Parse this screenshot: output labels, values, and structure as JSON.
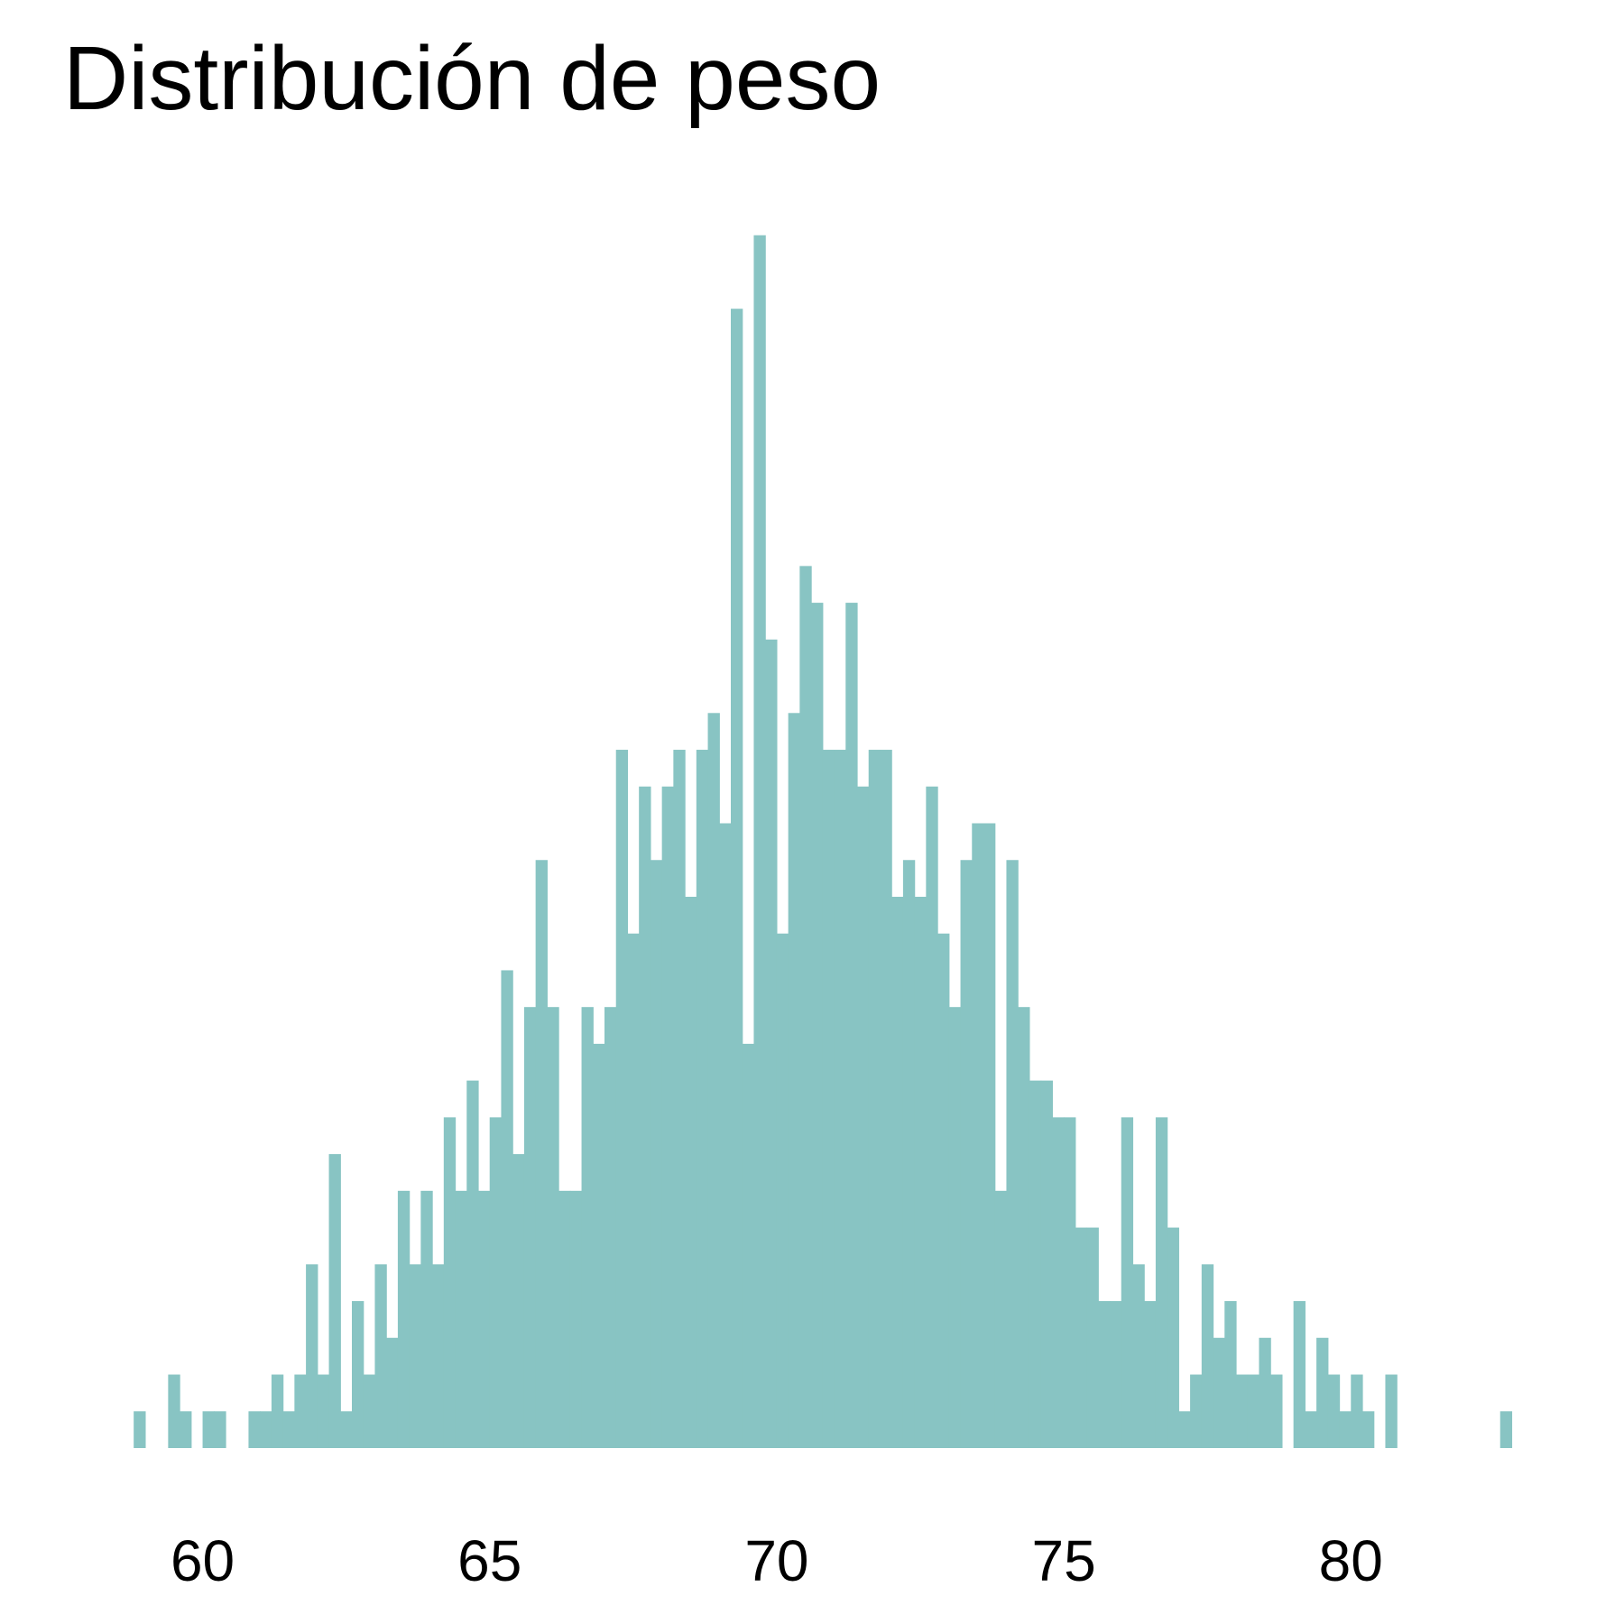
{
  "chart_data": {
    "type": "histogram",
    "title": "Distribución de peso",
    "xlabel": "",
    "ylabel": "",
    "bar_color": "#88C4C3",
    "background": "#FFFFFF",
    "grid": false,
    "show_y_axis": false,
    "x_ticks": [
      60,
      65,
      70,
      75,
      80
    ],
    "x_tick_labels": [
      "60",
      "65",
      "70",
      "75",
      "80"
    ],
    "xlim": [
      58.2,
      83.5
    ],
    "ylim": [
      0,
      34
    ],
    "bin_width": 0.2,
    "bins": [
      {
        "x0": 58.8,
        "count": 1
      },
      {
        "x0": 59.0,
        "count": 0
      },
      {
        "x0": 59.2,
        "count": 0
      },
      {
        "x0": 59.4,
        "count": 2
      },
      {
        "x0": 59.6,
        "count": 1
      },
      {
        "x0": 59.8,
        "count": 0
      },
      {
        "x0": 60.0,
        "count": 1
      },
      {
        "x0": 60.2,
        "count": 1
      },
      {
        "x0": 60.4,
        "count": 0
      },
      {
        "x0": 60.6,
        "count": 0
      },
      {
        "x0": 60.8,
        "count": 1
      },
      {
        "x0": 61.0,
        "count": 1
      },
      {
        "x0": 61.2,
        "count": 2
      },
      {
        "x0": 61.4,
        "count": 1
      },
      {
        "x0": 61.6,
        "count": 2
      },
      {
        "x0": 61.8,
        "count": 5
      },
      {
        "x0": 62.0,
        "count": 2
      },
      {
        "x0": 62.2,
        "count": 8
      },
      {
        "x0": 62.4,
        "count": 1
      },
      {
        "x0": 62.6,
        "count": 4
      },
      {
        "x0": 62.8,
        "count": 2
      },
      {
        "x0": 63.0,
        "count": 5
      },
      {
        "x0": 63.2,
        "count": 3
      },
      {
        "x0": 63.4,
        "count": 7
      },
      {
        "x0": 63.6,
        "count": 5
      },
      {
        "x0": 63.8,
        "count": 7
      },
      {
        "x0": 64.0,
        "count": 5
      },
      {
        "x0": 64.2,
        "count": 9
      },
      {
        "x0": 64.4,
        "count": 7
      },
      {
        "x0": 64.6,
        "count": 10
      },
      {
        "x0": 64.8,
        "count": 7
      },
      {
        "x0": 65.0,
        "count": 9
      },
      {
        "x0": 65.2,
        "count": 13
      },
      {
        "x0": 65.4,
        "count": 8
      },
      {
        "x0": 65.6,
        "count": 12
      },
      {
        "x0": 65.8,
        "count": 16
      },
      {
        "x0": 66.0,
        "count": 12
      },
      {
        "x0": 66.2,
        "count": 7
      },
      {
        "x0": 66.4,
        "count": 7
      },
      {
        "x0": 66.6,
        "count": 12
      },
      {
        "x0": 66.8,
        "count": 11
      },
      {
        "x0": 67.0,
        "count": 12
      },
      {
        "x0": 67.2,
        "count": 19
      },
      {
        "x0": 67.4,
        "count": 14
      },
      {
        "x0": 67.6,
        "count": 18
      },
      {
        "x0": 67.8,
        "count": 16
      },
      {
        "x0": 68.0,
        "count": 18
      },
      {
        "x0": 68.2,
        "count": 19
      },
      {
        "x0": 68.4,
        "count": 15
      },
      {
        "x0": 68.6,
        "count": 19
      },
      {
        "x0": 68.8,
        "count": 20
      },
      {
        "x0": 69.0,
        "count": 17
      },
      {
        "x0": 69.2,
        "count": 31
      },
      {
        "x0": 69.4,
        "count": 11
      },
      {
        "x0": 69.6,
        "count": 33
      },
      {
        "x0": 69.8,
        "count": 22
      },
      {
        "x0": 70.0,
        "count": 14
      },
      {
        "x0": 70.2,
        "count": 20
      },
      {
        "x0": 70.4,
        "count": 24
      },
      {
        "x0": 70.6,
        "count": 23
      },
      {
        "x0": 70.8,
        "count": 19
      },
      {
        "x0": 71.0,
        "count": 19
      },
      {
        "x0": 71.2,
        "count": 23
      },
      {
        "x0": 71.4,
        "count": 18
      },
      {
        "x0": 71.6,
        "count": 19
      },
      {
        "x0": 71.8,
        "count": 19
      },
      {
        "x0": 72.0,
        "count": 15
      },
      {
        "x0": 72.2,
        "count": 16
      },
      {
        "x0": 72.4,
        "count": 15
      },
      {
        "x0": 72.6,
        "count": 18
      },
      {
        "x0": 72.8,
        "count": 14
      },
      {
        "x0": 73.0,
        "count": 12
      },
      {
        "x0": 73.2,
        "count": 16
      },
      {
        "x0": 73.4,
        "count": 17
      },
      {
        "x0": 73.6,
        "count": 17
      },
      {
        "x0": 73.8,
        "count": 7
      },
      {
        "x0": 74.0,
        "count": 16
      },
      {
        "x0": 74.2,
        "count": 12
      },
      {
        "x0": 74.4,
        "count": 10
      },
      {
        "x0": 74.6,
        "count": 10
      },
      {
        "x0": 74.8,
        "count": 9
      },
      {
        "x0": 75.0,
        "count": 9
      },
      {
        "x0": 75.2,
        "count": 6
      },
      {
        "x0": 75.4,
        "count": 6
      },
      {
        "x0": 75.6,
        "count": 4
      },
      {
        "x0": 75.8,
        "count": 4
      },
      {
        "x0": 76.0,
        "count": 9
      },
      {
        "x0": 76.2,
        "count": 5
      },
      {
        "x0": 76.4,
        "count": 4
      },
      {
        "x0": 76.6,
        "count": 9
      },
      {
        "x0": 76.8,
        "count": 6
      },
      {
        "x0": 77.0,
        "count": 1
      },
      {
        "x0": 77.2,
        "count": 2
      },
      {
        "x0": 77.4,
        "count": 5
      },
      {
        "x0": 77.6,
        "count": 3
      },
      {
        "x0": 77.8,
        "count": 4
      },
      {
        "x0": 78.0,
        "count": 2
      },
      {
        "x0": 78.2,
        "count": 2
      },
      {
        "x0": 78.4,
        "count": 3
      },
      {
        "x0": 78.6,
        "count": 2
      },
      {
        "x0": 78.8,
        "count": 0
      },
      {
        "x0": 79.0,
        "count": 4
      },
      {
        "x0": 79.2,
        "count": 1
      },
      {
        "x0": 79.4,
        "count": 3
      },
      {
        "x0": 79.6,
        "count": 2
      },
      {
        "x0": 79.8,
        "count": 1
      },
      {
        "x0": 80.0,
        "count": 2
      },
      {
        "x0": 80.2,
        "count": 1
      },
      {
        "x0": 80.4,
        "count": 0
      },
      {
        "x0": 80.6,
        "count": 2
      },
      {
        "x0": 80.8,
        "count": 0
      },
      {
        "x0": 81.0,
        "count": 0
      },
      {
        "x0": 81.2,
        "count": 0
      },
      {
        "x0": 81.4,
        "count": 0
      },
      {
        "x0": 81.6,
        "count": 0
      },
      {
        "x0": 81.8,
        "count": 0
      },
      {
        "x0": 82.0,
        "count": 0
      },
      {
        "x0": 82.2,
        "count": 0
      },
      {
        "x0": 82.4,
        "count": 0
      },
      {
        "x0": 82.6,
        "count": 1
      }
    ]
  }
}
